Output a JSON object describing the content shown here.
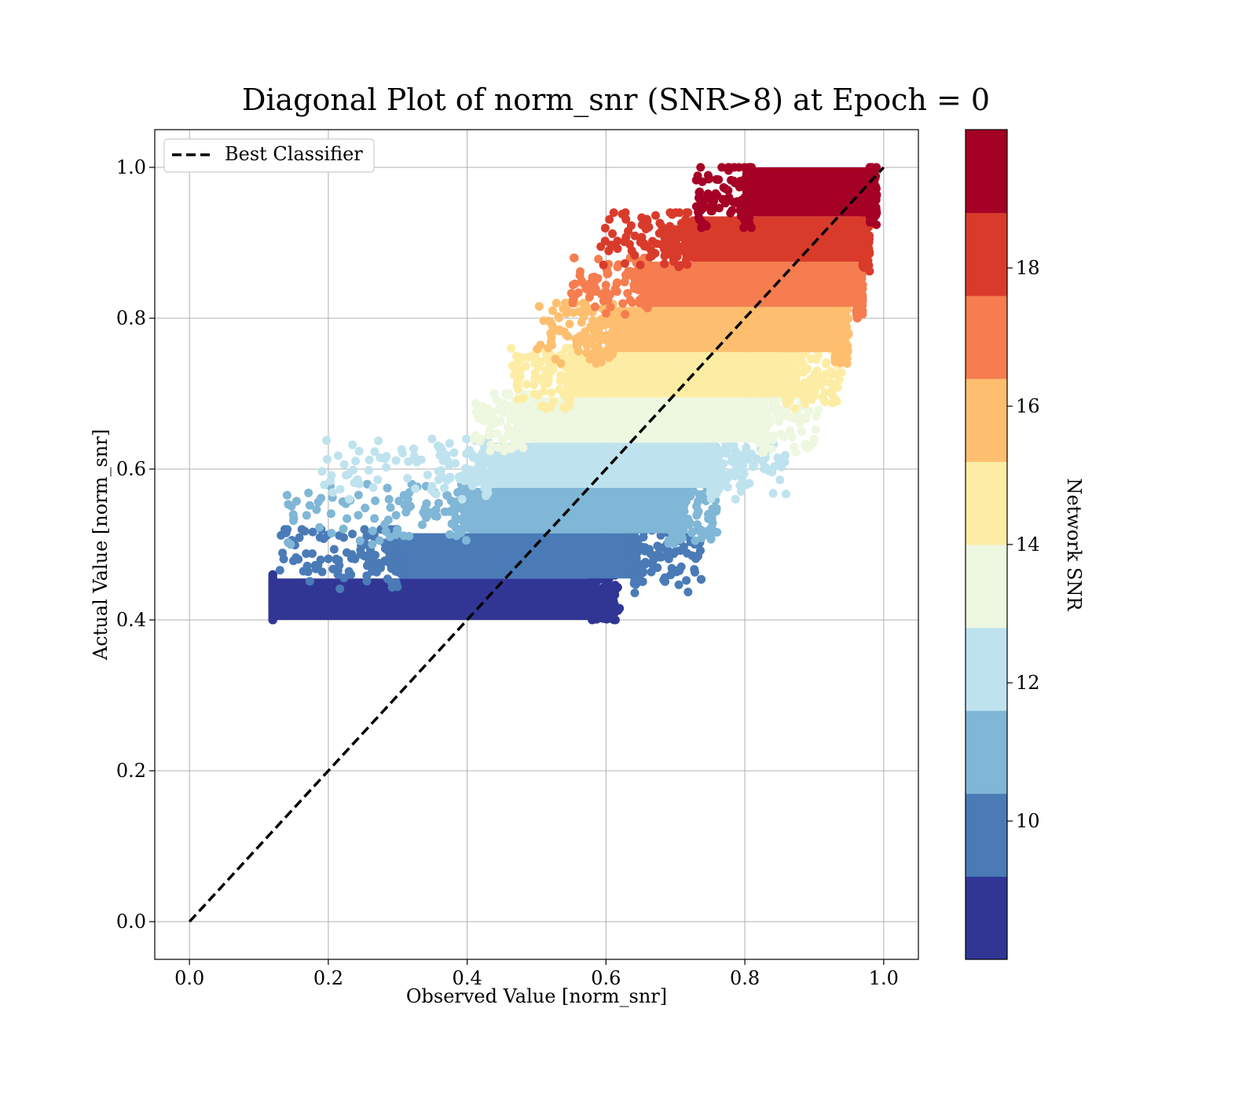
{
  "chart_data": {
    "type": "scatter",
    "title": "Diagonal Plot of norm_snr (SNR>8) at Epoch = 0",
    "xlabel": "Observed Value [norm_snr]",
    "ylabel": "Actual Value [norm_snr]",
    "xlim": [
      -0.05,
      1.05
    ],
    "ylim": [
      -0.05,
      1.05
    ],
    "xticks": [
      "0.0",
      "0.2",
      "0.4",
      "0.6",
      "0.8",
      "1.0"
    ],
    "yticks": [
      "0.0",
      "0.2",
      "0.4",
      "0.6",
      "0.8",
      "1.0"
    ],
    "grid": true,
    "legend": {
      "location": "upper-left",
      "entries": [
        "Best Classifier"
      ]
    },
    "reference_line": {
      "name": "Best Classifier",
      "style": "dashed",
      "color": "#000000",
      "x": [
        0.0,
        1.0
      ],
      "y": [
        0.0,
        1.0
      ]
    },
    "colorbar": {
      "label": "Network SNR",
      "range": [
        8,
        20
      ],
      "ticks": [
        "10",
        "12",
        "14",
        "16",
        "18"
      ],
      "tick_values": [
        10,
        12,
        14,
        16,
        18
      ],
      "colors": [
        "#313695",
        "#4a7bb7",
        "#80b6d6",
        "#bee3ee",
        "#eef7e0",
        "#fdeda4",
        "#fdbf6f",
        "#f57d4f",
        "#d93b2b",
        "#a50026"
      ]
    },
    "bands": [
      {
        "snr": [
          8,
          9.2
        ],
        "y": [
          0.4,
          0.455
        ],
        "x": [
          0.12,
          0.58
        ],
        "color": "#313695",
        "scatter_x": [
          0.12,
          0.62
        ],
        "scatter_y": [
          0.4,
          0.46
        ]
      },
      {
        "snr": [
          9.2,
          10.4
        ],
        "y": [
          0.455,
          0.515
        ],
        "x": [
          0.3,
          0.64
        ],
        "color": "#4a7bb7",
        "scatter_x": [
          0.13,
          0.74
        ],
        "scatter_y": [
          0.43,
          0.52
        ]
      },
      {
        "snr": [
          10.4,
          11.6
        ],
        "y": [
          0.515,
          0.575
        ],
        "x": [
          0.4,
          0.69
        ],
        "color": "#80b6d6",
        "scatter_x": [
          0.13,
          0.76
        ],
        "scatter_y": [
          0.5,
          0.58
        ]
      },
      {
        "snr": [
          11.6,
          12.8
        ],
        "y": [
          0.575,
          0.635
        ],
        "x": [
          0.43,
          0.75
        ],
        "color": "#bee3ee",
        "scatter_x": [
          0.19,
          0.86
        ],
        "scatter_y": [
          0.56,
          0.64
        ]
      },
      {
        "snr": [
          12.8,
          14.0
        ],
        "y": [
          0.635,
          0.695
        ],
        "x": [
          0.49,
          0.82
        ],
        "color": "#eef7e0",
        "scatter_x": [
          0.41,
          0.91
        ],
        "scatter_y": [
          0.62,
          0.7
        ]
      },
      {
        "snr": [
          14.0,
          15.2
        ],
        "y": [
          0.695,
          0.755
        ],
        "x": [
          0.55,
          0.86
        ],
        "color": "#fdeda4",
        "scatter_x": [
          0.46,
          0.94
        ],
        "scatter_y": [
          0.68,
          0.76
        ]
      },
      {
        "snr": [
          15.2,
          16.4
        ],
        "y": [
          0.755,
          0.815
        ],
        "x": [
          0.61,
          0.93
        ],
        "color": "#fdbf6f",
        "scatter_x": [
          0.5,
          0.95
        ],
        "scatter_y": [
          0.74,
          0.82
        ]
      },
      {
        "snr": [
          16.4,
          17.6
        ],
        "y": [
          0.815,
          0.875
        ],
        "x": [
          0.66,
          0.96
        ],
        "color": "#f57d4f",
        "scatter_x": [
          0.55,
          0.97
        ],
        "scatter_y": [
          0.8,
          0.88
        ]
      },
      {
        "snr": [
          17.6,
          18.8
        ],
        "y": [
          0.875,
          0.935
        ],
        "x": [
          0.72,
          0.97
        ],
        "color": "#d93b2b",
        "scatter_x": [
          0.59,
          0.98
        ],
        "scatter_y": [
          0.86,
          0.94
        ]
      },
      {
        "snr": [
          18.8,
          20.0
        ],
        "y": [
          0.935,
          1.0
        ],
        "x": [
          0.81,
          0.98
        ],
        "color": "#a50026",
        "scatter_x": [
          0.73,
          0.99
        ],
        "scatter_y": [
          0.92,
          1.0
        ]
      }
    ]
  }
}
